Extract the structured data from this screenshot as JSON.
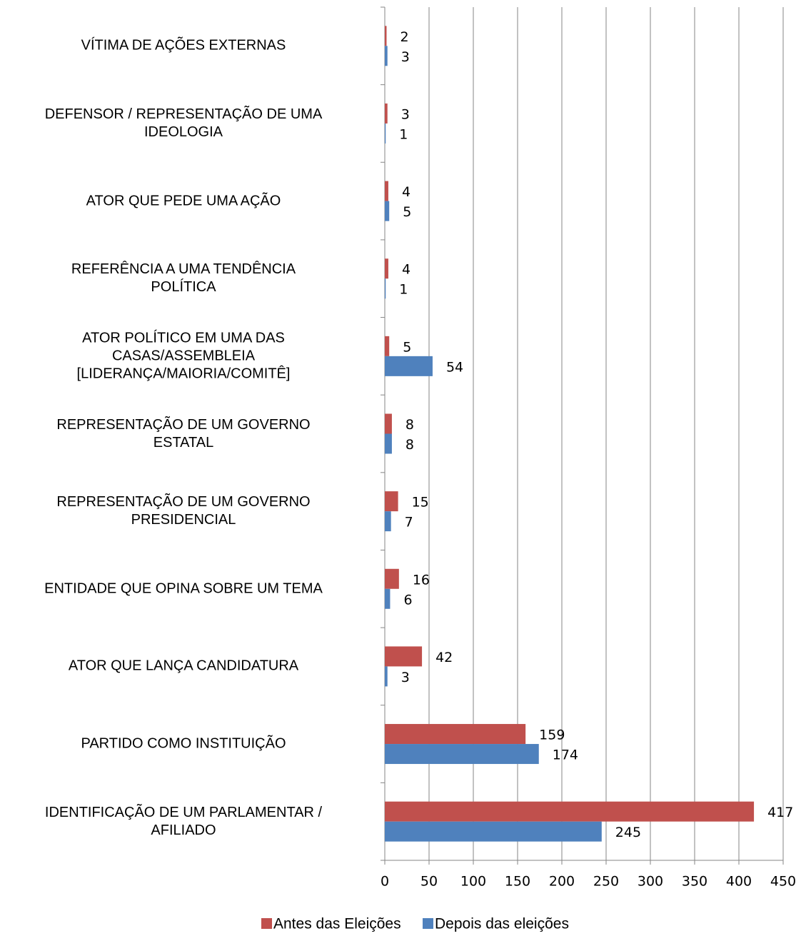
{
  "chart_data": {
    "type": "bar",
    "orientation": "horizontal",
    "categories": [
      "VÍTIMA DE AÇÕES EXTERNAS",
      "DEFENSOR / REPRESENTAÇÃO DE UMA\nIDEOLOGIA",
      "ATOR QUE PEDE UMA AÇÃO",
      "REFERÊNCIA A UMA TENDÊNCIA\nPOLÍTICA",
      "ATOR POLÍTICO EM UMA DAS\nCASAS/ASSEMBLEIA\n[LIDERANÇA/MAIORIA/COMITÊ]",
      "REPRESENTAÇÃO DE UM GOVERNO\nESTATAL",
      "REPRESENTAÇÃO DE UM GOVERNO\nPRESIDENCIAL",
      "ENTIDADE QUE OPINA SOBRE UM TEMA",
      "ATOR QUE LANÇA CANDIDATURA",
      "PARTIDO COMO INSTITUIÇÃO",
      "IDENTIFICAÇÃO DE UM PARLAMENTAR /\nAFILIADO"
    ],
    "series": [
      {
        "name": "Antes das Eleições",
        "color": "#c0504d",
        "values": [
          2,
          3,
          4,
          4,
          5,
          8,
          15,
          16,
          42,
          159,
          417
        ]
      },
      {
        "name": "Depois das eleições",
        "color": "#4f81bd",
        "values": [
          3,
          1,
          5,
          1,
          54,
          8,
          7,
          6,
          3,
          174,
          245
        ]
      }
    ],
    "xlim": [
      0,
      450
    ],
    "xticks": [
      0,
      50,
      100,
      150,
      200,
      250,
      300,
      350,
      400,
      450
    ],
    "grid": true,
    "legend": "bottom"
  }
}
